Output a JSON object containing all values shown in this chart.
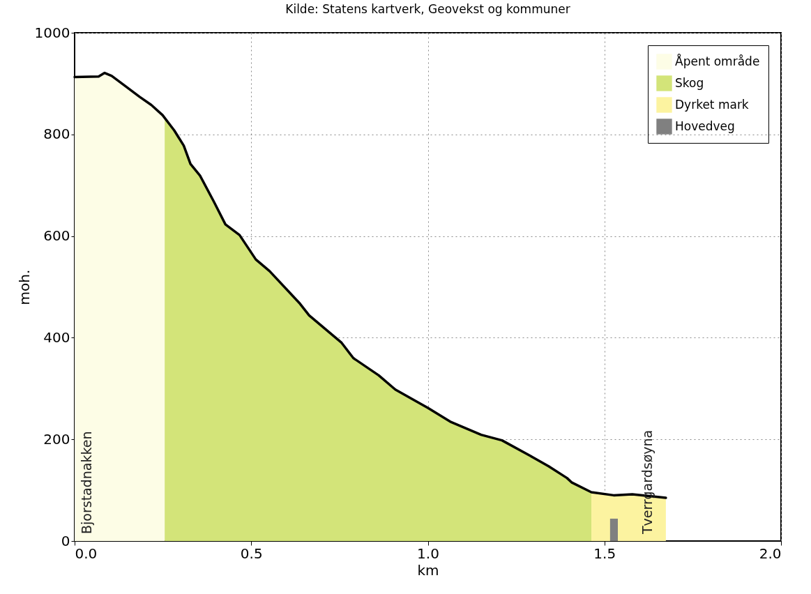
{
  "chart_data": {
    "type": "area",
    "title": "Kilde: Statens kartverk, Geovekst og kommuner",
    "xlabel": "km",
    "ylabel": "moh.",
    "xlim": [
      0,
      2
    ],
    "xticks": [
      {
        "value": 0,
        "label": "0.0"
      },
      {
        "value": 0.5,
        "label": "0.5"
      },
      {
        "value": 1,
        "label": "1.0"
      },
      {
        "value": 1.5,
        "label": "1.5"
      },
      {
        "value": 2,
        "label": "2.0"
      }
    ],
    "ylim": [
      0,
      1000
    ],
    "yticks": [
      0,
      200,
      400,
      600,
      800,
      1000
    ],
    "grid": true,
    "legend": "top right",
    "series": [
      {
        "name": "Åpent område",
        "color": "#fdfde6",
        "x": [
          0,
          0.068,
          0.085,
          0.105,
          0.144,
          0.184,
          0.217,
          0.249,
          0.255
        ],
        "values": [
          913,
          914,
          921,
          915,
          895,
          874,
          858,
          838,
          833
        ]
      },
      {
        "name": "Skog",
        "color": "#d3e479",
        "x": [
          0.255,
          0.282,
          0.309,
          0.328,
          0.355,
          0.394,
          0.427,
          0.467,
          0.513,
          0.552,
          0.638,
          0.664,
          0.756,
          0.789,
          0.861,
          0.908,
          1.0,
          1.066,
          1.151,
          1.21,
          1.289,
          1.342,
          1.394,
          1.408,
          1.463
        ],
        "values": [
          833,
          808,
          778,
          742,
          719,
          668,
          623,
          602,
          554,
          531,
          467,
          444,
          390,
          360,
          326,
          298,
          262,
          234,
          209,
          198,
          168,
          147,
          124,
          115,
          96
        ]
      },
      {
        "name": "Dyrket mark",
        "color": "#fcf3a0",
        "x": [
          1.463,
          1.526,
          1.579,
          1.632,
          1.674
        ],
        "values": [
          96,
          90,
          92,
          88,
          85
        ]
      },
      {
        "name": "Hovedveg",
        "color": "#808080",
        "x": [
          1.516,
          1.538
        ],
        "values": [
          44,
          44
        ]
      },
      {
        "type": "line",
        "color": "#000000",
        "x": [
          0,
          0.068,
          0.085,
          0.105,
          0.144,
          0.184,
          0.217,
          0.249,
          0.282,
          0.309,
          0.328,
          0.355,
          0.394,
          0.427,
          0.467,
          0.513,
          0.552,
          0.638,
          0.664,
          0.756,
          0.789,
          0.861,
          0.908,
          1.0,
          1.066,
          1.151,
          1.21,
          1.289,
          1.342,
          1.394,
          1.408,
          1.463,
          1.526,
          1.579,
          1.632,
          1.674
        ],
        "values": [
          913,
          914,
          921,
          915,
          895,
          874,
          858,
          838,
          808,
          778,
          742,
          719,
          668,
          623,
          602,
          554,
          531,
          467,
          444,
          390,
          360,
          326,
          298,
          262,
          234,
          209,
          198,
          168,
          147,
          124,
          115,
          96,
          90,
          92,
          88,
          85
        ]
      }
    ],
    "annotations": [
      "Bjorstadnakken",
      "Tverrgardsøyna"
    ]
  }
}
